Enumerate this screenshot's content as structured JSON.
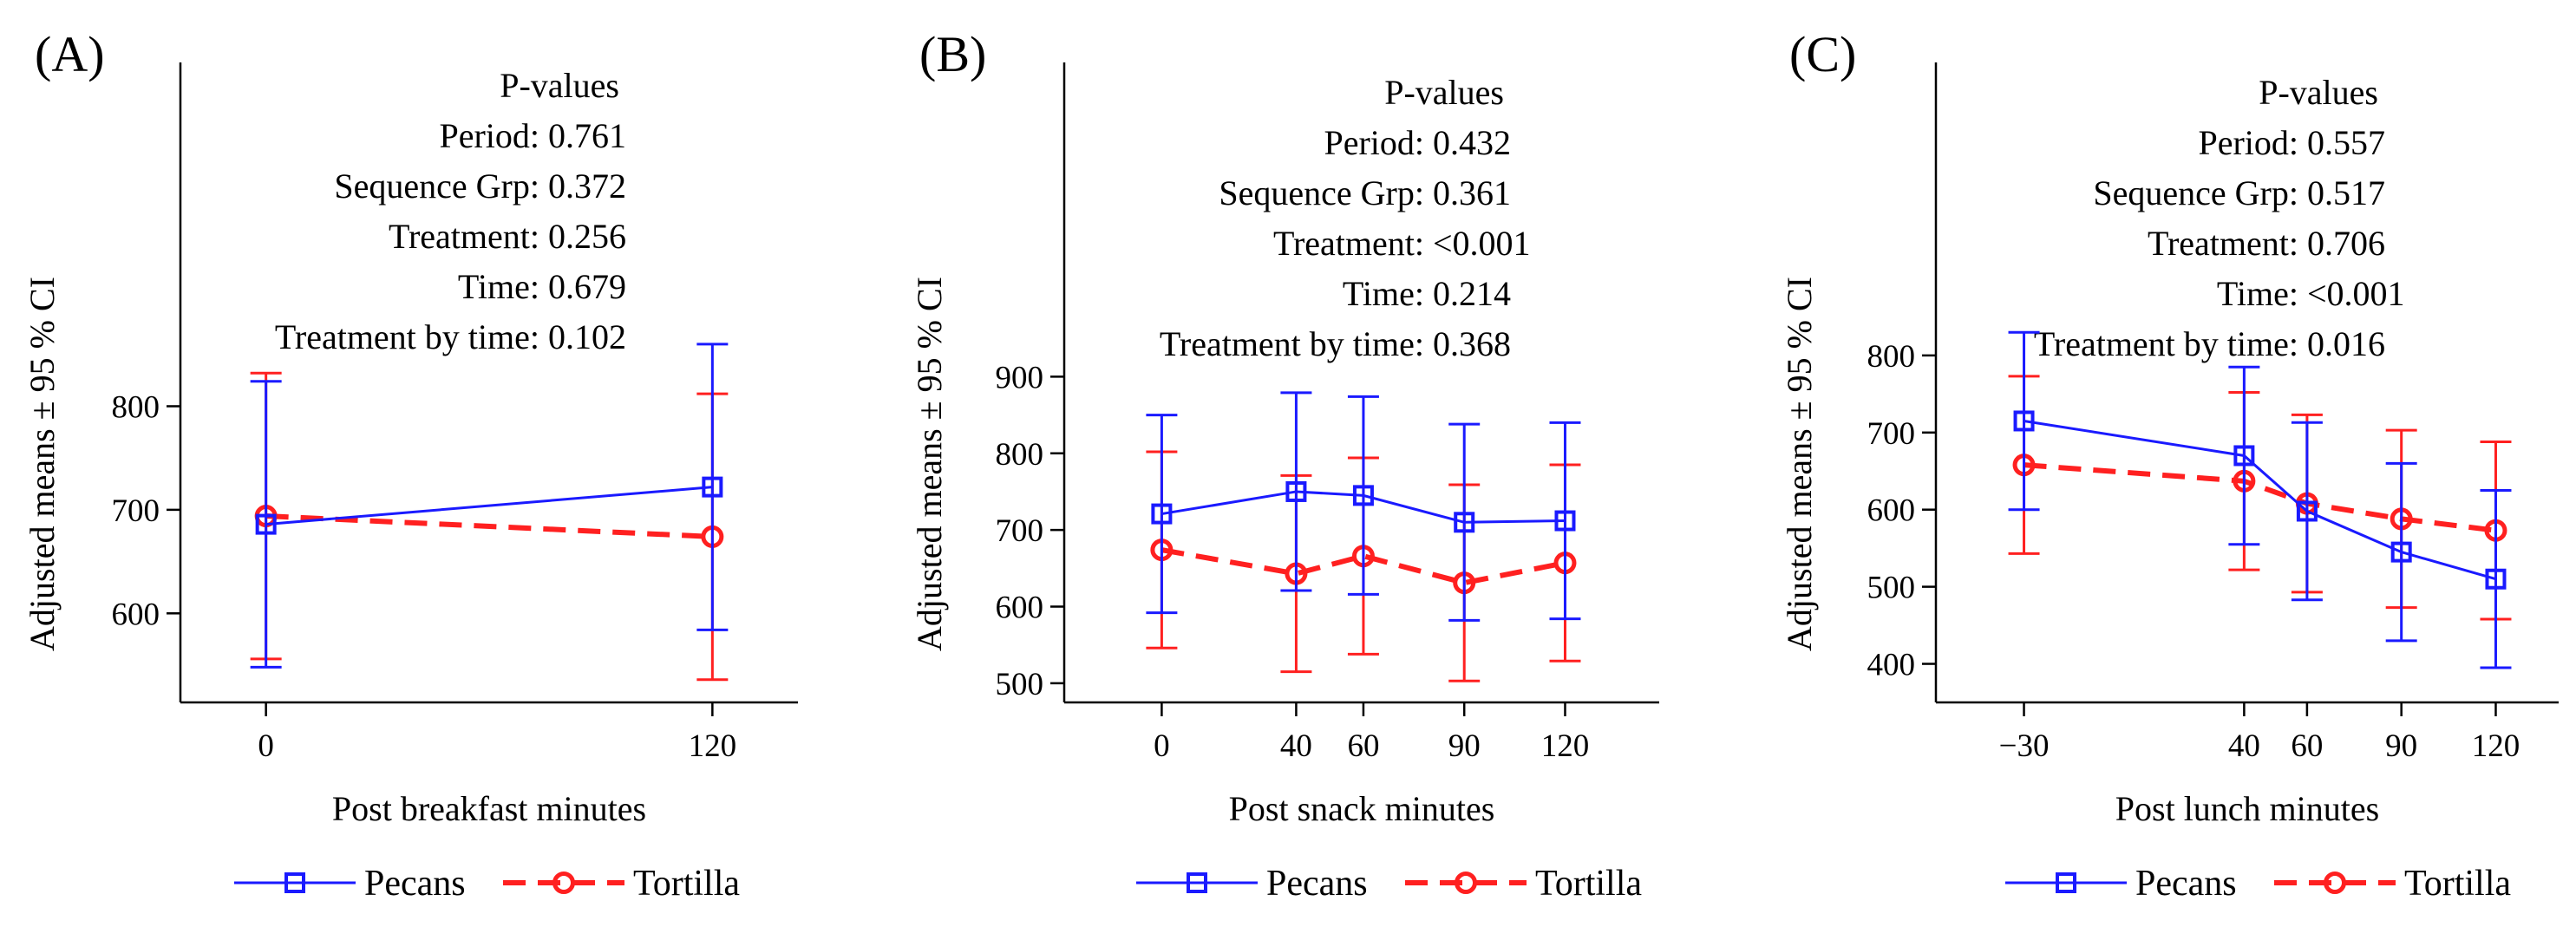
{
  "colors": {
    "pecans": "#1a1aff",
    "tortilla": "#ff2020",
    "axis": "#000000"
  },
  "chart_data": [
    {
      "type": "line",
      "panel_label": "(A)",
      "xlabel": "Post breakfast minutes",
      "ylabel": "Adjusted means ± 95 % CI",
      "x_ticks": [
        "0",
        "120"
      ],
      "x_values": [
        0,
        120
      ],
      "xlim": [
        -23,
        143
      ],
      "y_ticks": [
        600,
        700,
        800
      ],
      "ylim": [
        514,
        1132
      ],
      "stats_header": "P-values",
      "stats": [
        {
          "label": "Period:",
          "value": "0.761"
        },
        {
          "label": "Sequence Grp:",
          "value": "0.372"
        },
        {
          "label": "Treatment:",
          "value": "0.256"
        },
        {
          "label": "Time:",
          "value": "0.679"
        },
        {
          "label": "Treatment by time:",
          "value": "0.102"
        }
      ],
      "series": [
        {
          "name": "Pecans",
          "values": [
            686,
            722
          ],
          "ci_low": [
            548,
            584
          ],
          "ci_high": [
            824,
            860
          ]
        },
        {
          "name": "Tortilla",
          "values": [
            694,
            674
          ],
          "ci_low": [
            556,
            536
          ],
          "ci_high": [
            832,
            812
          ]
        }
      ]
    },
    {
      "type": "line",
      "panel_label": "(B)",
      "xlabel": "Post snack minutes",
      "ylabel": "Adjusted means ± 95 % CI",
      "x_ticks": [
        "0",
        "40",
        "60",
        "90",
        "120"
      ],
      "x_values": [
        0,
        40,
        60,
        90,
        120
      ],
      "xlim": [
        -29,
        148
      ],
      "y_ticks": [
        500,
        600,
        700,
        800,
        900
      ],
      "ylim": [
        475,
        1310
      ],
      "stats_header": "P-values",
      "stats": [
        {
          "label": "Period:",
          "value": "0.432"
        },
        {
          "label": "Sequence Grp:",
          "value": "0.361"
        },
        {
          "label": "Treatment:",
          "value": "<0.001"
        },
        {
          "label": "Time:",
          "value": "0.214"
        },
        {
          "label": "Treatment by time:",
          "value": "0.368"
        }
      ],
      "series": [
        {
          "name": "Pecans",
          "values": [
            721,
            750,
            745,
            710,
            712
          ],
          "ci_low": [
            592,
            621,
            616,
            582,
            584
          ],
          "ci_high": [
            850,
            879,
            874,
            838,
            840
          ]
        },
        {
          "name": "Tortilla",
          "values": [
            674,
            643,
            666,
            631,
            657
          ],
          "ci_low": [
            546,
            515,
            538,
            503,
            529
          ],
          "ci_high": [
            802,
            771,
            794,
            759,
            785
          ]
        }
      ]
    },
    {
      "type": "line",
      "panel_label": "(C)",
      "xlabel": "Post lunch minutes",
      "ylabel": "Adjusted means ± 95 % CI",
      "x_ticks": [
        "−30",
        "40",
        "60",
        "90",
        "120"
      ],
      "x_values": [
        -30,
        40,
        60,
        90,
        120
      ],
      "xlim": [
        -58,
        140
      ],
      "y_ticks": [
        400,
        500,
        600,
        700,
        800
      ],
      "ylim": [
        350,
        1180
      ],
      "stats_header": "P-values",
      "stats": [
        {
          "label": "Period:",
          "value": "0.557"
        },
        {
          "label": "Sequence Grp:",
          "value": "0.517"
        },
        {
          "label": "Treatment:",
          "value": "0.706"
        },
        {
          "label": "Time:",
          "value": "<0.001"
        },
        {
          "label": "Treatment by time:",
          "value": "0.016"
        }
      ],
      "series": [
        {
          "name": "Pecans",
          "values": [
            715,
            670,
            598,
            545,
            510
          ],
          "ci_low": [
            600,
            555,
            483,
            430,
            395
          ],
          "ci_high": [
            830,
            785,
            713,
            660,
            625
          ]
        },
        {
          "name": "Tortilla",
          "values": [
            658,
            637,
            608,
            588,
            573
          ],
          "ci_low": [
            543,
            522,
            493,
            473,
            458
          ],
          "ci_high": [
            773,
            752,
            723,
            703,
            688
          ]
        }
      ]
    }
  ]
}
